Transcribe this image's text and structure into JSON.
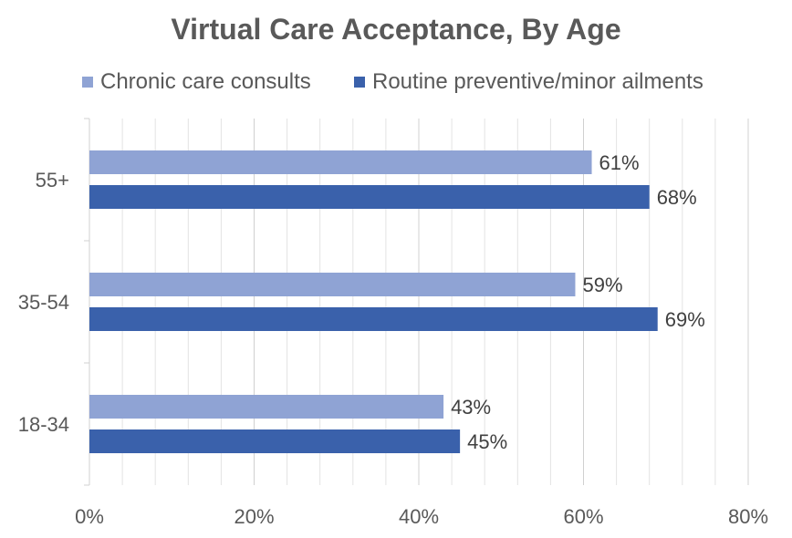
{
  "chart_data": {
    "type": "bar",
    "orientation": "horizontal",
    "title": "Virtual Care Acceptance, By Age",
    "categories": [
      "55+",
      "35-54",
      "18-34"
    ],
    "series": [
      {
        "name": "Chronic care consults",
        "color": "#8FA3D4",
        "values": [
          61,
          59,
          43
        ],
        "labels": [
          "61%",
          "59%",
          "43%"
        ]
      },
      {
        "name": "Routine preventive/minor ailments",
        "color": "#3A61AB",
        "values": [
          68,
          69,
          45
        ],
        "labels": [
          "68%",
          "69%",
          "45%"
        ]
      }
    ],
    "x_ticks": [
      0,
      20,
      40,
      60,
      80
    ],
    "x_tick_labels": [
      "0%",
      "20%",
      "40%",
      "60%",
      "80%"
    ],
    "xlim": [
      0,
      80
    ],
    "legend_position": "top",
    "grid": "vertical minor gridlines"
  }
}
